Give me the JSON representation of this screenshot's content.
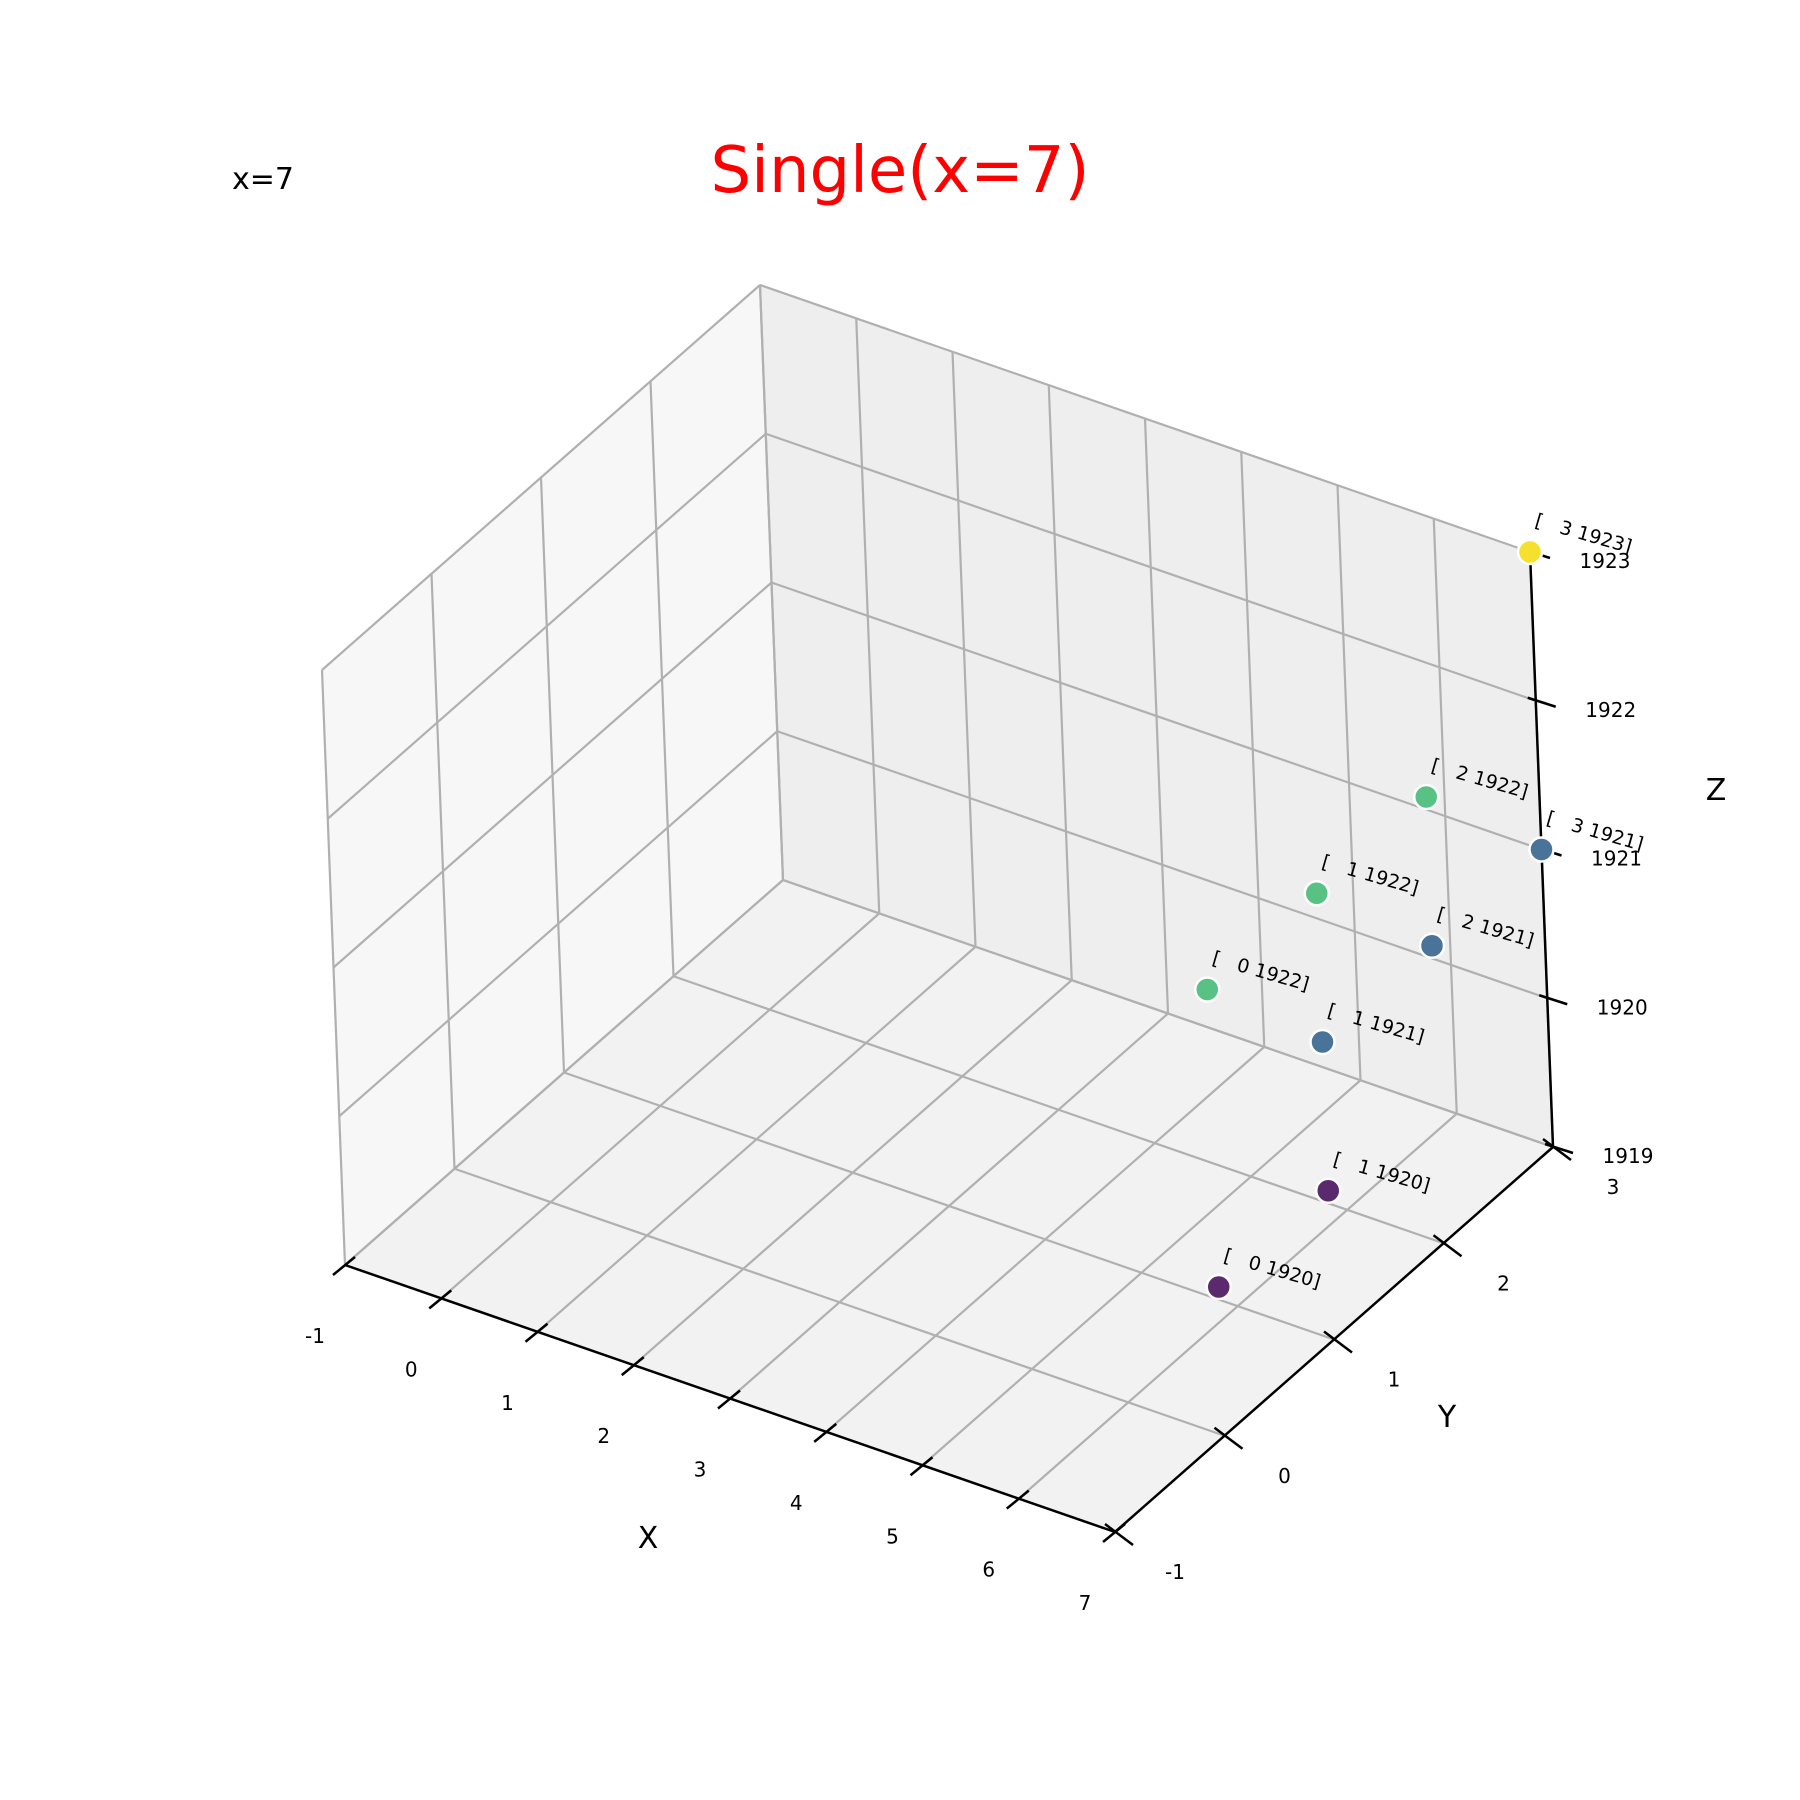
{
  "title": "Single(x=7)",
  "annotation": "x=7",
  "chart_data": {
    "type": "scatter3d",
    "title": "Single(x=7)",
    "xlabel": "X",
    "ylabel": "Y",
    "zlabel": "Z",
    "xlim": [
      -1,
      7
    ],
    "ylim": [
      -1,
      3
    ],
    "zlim": [
      1919,
      1923
    ],
    "xticks": [
      -1,
      0,
      1,
      2,
      3,
      4,
      5,
      6,
      7
    ],
    "yticks": [
      -1,
      0,
      1,
      2,
      3
    ],
    "zticks": [
      1919,
      1920,
      1921,
      1922,
      1923
    ],
    "grid": true,
    "colormap": "viridis",
    "points": [
      {
        "x": 7,
        "y": 0,
        "z": 1920,
        "label": "[   0 1920]",
        "color": "#5b2a6e"
      },
      {
        "x": 7,
        "y": 1,
        "z": 1920,
        "label": "[   1 1920]",
        "color": "#5b2a6e"
      },
      {
        "x": 7,
        "y": 1,
        "z": 1921,
        "label": "[   1 1921]",
        "color": "#4a7399"
      },
      {
        "x": 7,
        "y": 2,
        "z": 1921,
        "label": "[   2 1921]",
        "color": "#4a7399"
      },
      {
        "x": 7,
        "y": 3,
        "z": 1921,
        "label": "[   3 1921]",
        "color": "#4a7399"
      },
      {
        "x": 7,
        "y": 0,
        "z": 1922,
        "label": "[   0 1922]",
        "color": "#58c285"
      },
      {
        "x": 7,
        "y": 1,
        "z": 1922,
        "label": "[   1 1922]",
        "color": "#58c285"
      },
      {
        "x": 7,
        "y": 2,
        "z": 1922,
        "label": "[   2 1922]",
        "color": "#58c285"
      },
      {
        "x": 7,
        "y": 3,
        "z": 1923,
        "label": "[   3 1923]",
        "color": "#f5e12d"
      }
    ]
  }
}
